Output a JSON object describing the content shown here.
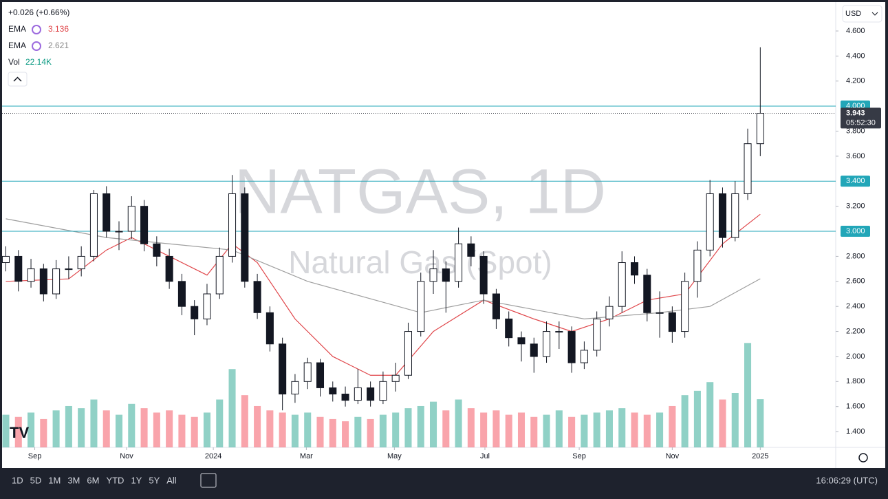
{
  "header": {
    "change": "+0.026 (+0.66%)",
    "currency": "USD"
  },
  "chart_data": {
    "type": "candlestick",
    "title": "NATGAS, 1D",
    "subtitle": "Natural Gas (Spot)",
    "up_color": "#089981",
    "down_color": "#f23645",
    "candles": [
      [
        2.75,
        2.88,
        2.68,
        2.8
      ],
      [
        2.8,
        2.85,
        2.52,
        2.6
      ],
      [
        2.6,
        2.78,
        2.55,
        2.7
      ],
      [
        2.7,
        2.74,
        2.44,
        2.5
      ],
      [
        2.5,
        2.77,
        2.46,
        2.7
      ],
      [
        2.7,
        2.8,
        2.62,
        2.7
      ],
      [
        2.7,
        2.88,
        2.64,
        2.8
      ],
      [
        2.8,
        3.33,
        2.76,
        3.3
      ],
      [
        3.3,
        3.36,
        2.95,
        3.0
      ],
      [
        3.0,
        3.08,
        2.85,
        3.0
      ],
      [
        3.0,
        3.28,
        2.94,
        3.2
      ],
      [
        3.2,
        3.25,
        2.84,
        2.9
      ],
      [
        2.9,
        2.96,
        2.72,
        2.8
      ],
      [
        2.8,
        2.86,
        2.54,
        2.6
      ],
      [
        2.6,
        2.66,
        2.33,
        2.4
      ],
      [
        2.4,
        2.45,
        2.17,
        2.3
      ],
      [
        2.3,
        2.58,
        2.25,
        2.5
      ],
      [
        2.5,
        2.87,
        2.46,
        2.8
      ],
      [
        2.8,
        3.45,
        2.75,
        3.3
      ],
      [
        3.3,
        3.35,
        2.55,
        2.6
      ],
      [
        2.6,
        2.66,
        2.3,
        2.35
      ],
      [
        2.35,
        2.4,
        2.04,
        2.1
      ],
      [
        2.1,
        2.15,
        1.57,
        1.7
      ],
      [
        1.7,
        1.86,
        1.63,
        1.8
      ],
      [
        1.8,
        1.99,
        1.74,
        1.95
      ],
      [
        1.95,
        1.98,
        1.68,
        1.75
      ],
      [
        1.75,
        1.8,
        1.64,
        1.7
      ],
      [
        1.7,
        1.76,
        1.6,
        1.65
      ],
      [
        1.65,
        1.9,
        1.62,
        1.75
      ],
      [
        1.75,
        1.8,
        1.6,
        1.65
      ],
      [
        1.65,
        1.88,
        1.62,
        1.8
      ],
      [
        1.8,
        1.95,
        1.72,
        1.85
      ],
      [
        1.85,
        2.27,
        1.82,
        2.2
      ],
      [
        2.2,
        2.67,
        2.16,
        2.6
      ],
      [
        2.6,
        2.85,
        2.5,
        2.7
      ],
      [
        2.7,
        2.76,
        2.35,
        2.6
      ],
      [
        2.6,
        3.03,
        2.55,
        2.9
      ],
      [
        2.9,
        2.96,
        2.72,
        2.8
      ],
      [
        2.8,
        2.84,
        2.42,
        2.5
      ],
      [
        2.5,
        2.54,
        2.22,
        2.3
      ],
      [
        2.3,
        2.36,
        2.08,
        2.15
      ],
      [
        2.15,
        2.2,
        1.96,
        2.1
      ],
      [
        2.1,
        2.15,
        1.87,
        2.0
      ],
      [
        2.0,
        2.28,
        1.95,
        2.2
      ],
      [
        2.2,
        2.28,
        2.06,
        2.2
      ],
      [
        2.2,
        2.24,
        1.87,
        1.95
      ],
      [
        1.95,
        2.12,
        1.9,
        2.05
      ],
      [
        2.05,
        2.36,
        2.0,
        2.3
      ],
      [
        2.3,
        2.48,
        2.24,
        2.4
      ],
      [
        2.4,
        2.84,
        2.35,
        2.75
      ],
      [
        2.75,
        2.8,
        2.58,
        2.65
      ],
      [
        2.65,
        2.7,
        2.28,
        2.35
      ],
      [
        2.35,
        2.52,
        2.15,
        2.35
      ],
      [
        2.35,
        2.4,
        2.11,
        2.2
      ],
      [
        2.2,
        2.67,
        2.15,
        2.6
      ],
      [
        2.6,
        2.92,
        2.47,
        2.85
      ],
      [
        2.85,
        3.41,
        2.8,
        3.3
      ],
      [
        3.3,
        3.35,
        2.87,
        2.95
      ],
      [
        2.95,
        3.4,
        2.92,
        3.3
      ],
      [
        3.3,
        3.82,
        3.25,
        3.7
      ],
      [
        3.7,
        4.47,
        3.6,
        3.943
      ]
    ],
    "volume_name": "Vol",
    "volume_last_label": "22.14K",
    "volume": [
      15,
      14,
      16,
      13,
      17,
      19,
      18,
      22,
      17,
      15,
      20,
      18,
      16,
      17,
      15,
      14,
      16,
      22,
      36,
      24,
      19,
      17,
      16,
      15,
      16,
      14,
      13,
      12,
      14,
      13,
      15,
      16,
      18,
      19,
      21,
      17,
      22,
      18,
      16,
      17,
      15,
      16,
      14,
      15,
      17,
      14,
      15,
      16,
      17,
      18,
      16,
      15,
      16,
      19,
      24,
      26,
      30,
      22,
      25,
      48,
      22.14
    ],
    "series": [
      {
        "name": "EMA",
        "color": "#e0464a",
        "last": 3.136,
        "x": [
          0,
          5,
          8,
          10,
          13,
          16,
          18,
          20,
          23,
          26,
          29,
          31,
          34,
          38,
          42,
          45,
          48,
          51,
          54,
          57,
          60
        ],
        "values": [
          2.6,
          2.62,
          2.85,
          2.95,
          2.8,
          2.65,
          2.9,
          2.75,
          2.3,
          2.0,
          1.85,
          1.85,
          2.2,
          2.45,
          2.3,
          2.2,
          2.3,
          2.45,
          2.5,
          2.9,
          3.136
        ]
      },
      {
        "name": "EMA",
        "color": "#9e9e9e",
        "last": 2.621,
        "x": [
          0,
          8,
          13,
          18,
          24,
          33,
          38,
          46,
          52,
          56,
          60
        ],
        "values": [
          3.1,
          2.95,
          2.9,
          2.85,
          2.6,
          2.35,
          2.45,
          2.3,
          2.35,
          2.4,
          2.621
        ]
      }
    ],
    "levels": [
      {
        "value": 4.0,
        "label": "4.000"
      },
      {
        "value": 3.4,
        "label": "3.400"
      },
      {
        "value": 3.0,
        "label": "3.000"
      }
    ],
    "level_color": "#22a6b8",
    "last_price": 3.943,
    "countdown": "05:52:30",
    "xlim": [
      -0.3,
      66
    ],
    "xticks": [
      {
        "value": 2.3,
        "label": "Sep"
      },
      {
        "value": 9.6,
        "label": "Nov"
      },
      {
        "value": 16.5,
        "label": "2024"
      },
      {
        "value": 23.9,
        "label": "Mar"
      },
      {
        "value": 30.9,
        "label": "May"
      },
      {
        "value": 38.1,
        "label": "Jul"
      },
      {
        "value": 45.6,
        "label": "Sep"
      },
      {
        "value": 53.0,
        "label": "Nov"
      },
      {
        "value": 60.0,
        "label": "2025"
      }
    ],
    "ylim": [
      1.274,
      4.831
    ],
    "yticks": [
      {
        "value": 1.4,
        "label": "1.400"
      },
      {
        "value": 1.6,
        "label": "1.600"
      },
      {
        "value": 1.8,
        "label": "1.800"
      },
      {
        "value": 2.0,
        "label": "2.000"
      },
      {
        "value": 2.2,
        "label": "2.200"
      },
      {
        "value": 2.4,
        "label": "2.400"
      },
      {
        "value": 2.6,
        "label": "2.600"
      },
      {
        "value": 2.8,
        "label": "2.800"
      },
      {
        "value": 3.2,
        "label": "3.200"
      },
      {
        "value": 3.6,
        "label": "3.600"
      },
      {
        "value": 3.8,
        "label": "3.800"
      },
      {
        "value": 4.2,
        "label": "4.200"
      },
      {
        "value": 4.4,
        "label": "4.400"
      },
      {
        "value": 4.6,
        "label": "4.600"
      }
    ]
  },
  "toolbar": {
    "ranges": [
      "1D",
      "5D",
      "1M",
      "3M",
      "6M",
      "YTD",
      "1Y",
      "5Y",
      "All"
    ],
    "clock": "16:06:29 (UTC)"
  }
}
